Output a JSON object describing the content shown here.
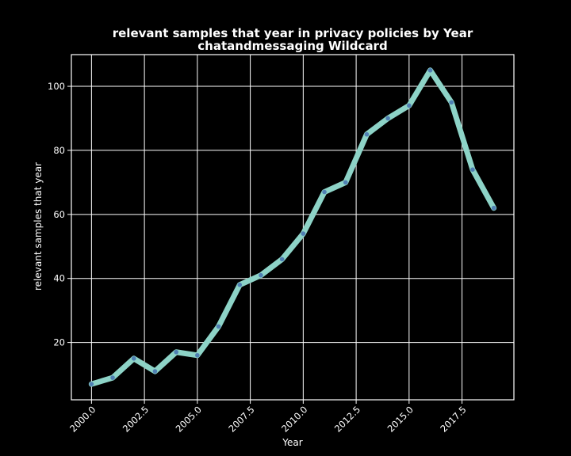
{
  "chart_data": {
    "type": "line",
    "title": "relevant samples that year in privacy policies by Year",
    "subtitle": "chatandmessaging Wildcard",
    "xlabel": "Year",
    "ylabel": "relevant samples that year",
    "x": [
      2000,
      2001,
      2002,
      2003,
      2004,
      2005,
      2006,
      2007,
      2008,
      2009,
      2010,
      2011,
      2012,
      2013,
      2014,
      2015,
      2016,
      2017,
      2018,
      2019
    ],
    "y": [
      7,
      9,
      15,
      11,
      17,
      16,
      25,
      38,
      41,
      46,
      54,
      67,
      70,
      85,
      90,
      94,
      105,
      95,
      74,
      62
    ],
    "xlim": [
      1999.05,
      2019.95
    ],
    "ylim": [
      2.1,
      109.9
    ],
    "xticks": [
      2000.0,
      2002.5,
      2005.0,
      2007.5,
      2010.0,
      2012.5,
      2015.0,
      2017.5
    ],
    "xtick_labels": [
      "2000.0",
      "2002.5",
      "2005.0",
      "2007.5",
      "2010.0",
      "2012.5",
      "2015.0",
      "2017.5"
    ],
    "yticks": [
      20,
      40,
      60,
      80,
      100
    ],
    "ytick_labels": [
      "20",
      "40",
      "60",
      "80",
      "100"
    ],
    "grid": true,
    "line_color": "#8dd3c7",
    "marker_color": "#4f7fb3",
    "background": "#000000"
  }
}
